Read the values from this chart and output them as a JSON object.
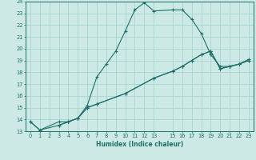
{
  "xlabel": "Humidex (Indice chaleur)",
  "bg_color": "#cce9e5",
  "grid_color": "#a8d4cf",
  "line_color": "#1e7068",
  "xlim": [
    -0.5,
    23.5
  ],
  "ylim": [
    13,
    24
  ],
  "xticks": [
    0,
    1,
    2,
    3,
    4,
    5,
    6,
    7,
    8,
    9,
    10,
    11,
    12,
    13,
    15,
    16,
    17,
    18,
    19,
    20,
    21,
    22,
    23
  ],
  "yticks": [
    13,
    14,
    15,
    16,
    17,
    18,
    19,
    20,
    21,
    22,
    23,
    24
  ],
  "lines": [
    {
      "x": [
        0,
        1,
        3,
        4,
        5,
        6,
        7,
        8,
        9,
        10,
        11,
        12,
        13,
        15,
        16,
        17,
        18,
        19,
        20,
        21,
        22,
        23
      ],
      "y": [
        13.8,
        13.1,
        13.8,
        13.8,
        14.1,
        15.2,
        17.6,
        18.7,
        19.8,
        21.5,
        23.3,
        23.9,
        23.2,
        23.3,
        23.3,
        22.5,
        21.3,
        19.5,
        18.5,
        18.5,
        18.7,
        19.1
      ]
    },
    {
      "x": [
        0,
        1,
        3,
        4,
        5,
        6,
        7,
        10,
        13,
        15,
        16,
        17,
        18,
        19,
        20,
        21,
        22,
        23
      ],
      "y": [
        13.8,
        13.1,
        13.5,
        13.8,
        14.1,
        15.0,
        15.3,
        16.2,
        17.5,
        18.1,
        18.5,
        19.0,
        19.5,
        19.8,
        18.3,
        18.5,
        18.7,
        19.0
      ]
    },
    {
      "x": [
        3,
        4,
        5,
        6,
        7,
        10,
        13,
        15,
        16,
        17,
        18,
        19,
        20,
        21,
        22,
        23
      ],
      "y": [
        13.5,
        13.8,
        14.1,
        15.0,
        15.3,
        16.2,
        17.5,
        18.1,
        18.5,
        19.0,
        19.5,
        19.8,
        18.3,
        18.5,
        18.7,
        19.0
      ]
    }
  ]
}
